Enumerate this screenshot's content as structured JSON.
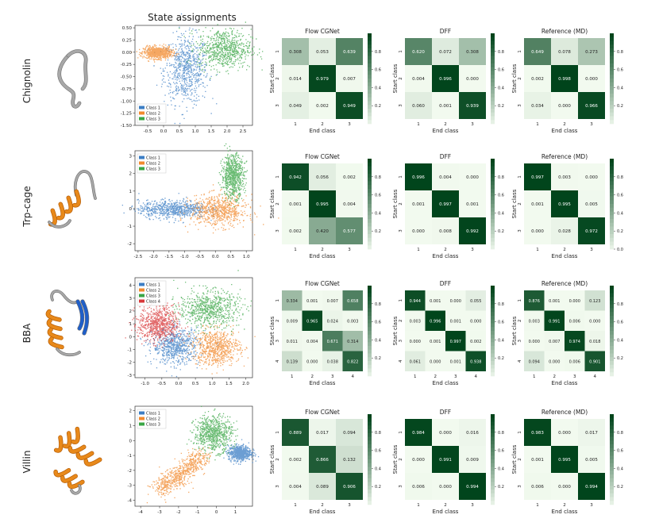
{
  "figure": {
    "column_title": "State assignments",
    "colors": {
      "class1": "#3b7dc4",
      "class2": "#f28a2e",
      "class3": "#3aa645",
      "class4": "#d8383a",
      "protein": "#e8891a",
      "loop": "#9a9a9a",
      "strand": "#1f5fc9"
    }
  },
  "chart_data": [
    {
      "row": "Chignolin",
      "type": "scatter",
      "legend": [
        "Class 1",
        "Class 2",
        "Class 3"
      ],
      "xticks": [
        "-0.5",
        "0.0",
        "0.5",
        "1.0",
        "1.5",
        "2.0",
        "2.5"
      ],
      "yticks": [
        "0.50",
        "0.25",
        "0.00",
        "-0.25",
        "-0.50",
        "-0.75",
        "-1.00",
        "-1.25",
        "-1.50"
      ],
      "xlim": [
        -0.9,
        2.8
      ],
      "ylim": [
        -1.5,
        0.55
      ]
    },
    {
      "row": "Chignolin",
      "type": "heatmap",
      "title": "Flow CGNet",
      "xlabel": "End class",
      "ylabel": "Start class",
      "labels": [
        "1",
        "2",
        "3"
      ],
      "values": [
        [
          0.308,
          0.053,
          0.639
        ],
        [
          0.014,
          0.979,
          0.007
        ],
        [
          0.049,
          0.002,
          0.949
        ]
      ],
      "cbar_ticks": [
        "0.8",
        "0.6",
        "0.4",
        "0.2"
      ]
    },
    {
      "row": "Chignolin",
      "type": "heatmap",
      "title": "DFF",
      "xlabel": "End class",
      "ylabel": "Start class",
      "labels": [
        "1",
        "2",
        "3"
      ],
      "values": [
        [
          0.62,
          0.072,
          0.308
        ],
        [
          0.004,
          0.996,
          0.0
        ],
        [
          0.06,
          0.001,
          0.939
        ]
      ],
      "cbar_ticks": [
        "0.8",
        "0.6",
        "0.4",
        "0.2"
      ]
    },
    {
      "row": "Chignolin",
      "type": "heatmap",
      "title": "Reference (MD)",
      "xlabel": "End class",
      "ylabel": "Start class",
      "labels": [
        "1",
        "2",
        "3"
      ],
      "values": [
        [
          0.649,
          0.078,
          0.273
        ],
        [
          0.002,
          0.998,
          0.0
        ],
        [
          0.034,
          0.0,
          0.966
        ]
      ],
      "cbar_ticks": [
        "0.8",
        "0.6",
        "0.4",
        "0.2"
      ]
    },
    {
      "row": "Trp-cage",
      "type": "scatter",
      "legend": [
        "Class 1",
        "Class 2",
        "Class 3"
      ],
      "xticks": [
        "-2.5",
        "-2.0",
        "-1.5",
        "-1.0",
        "-0.5",
        "0.0",
        "0.5",
        "1.0"
      ],
      "yticks": [
        "3",
        "2",
        "1",
        "0",
        "-1",
        "-2"
      ],
      "xlim": [
        -2.6,
        1.2
      ],
      "ylim": [
        -2.4,
        3.3
      ]
    },
    {
      "row": "Trp-cage",
      "type": "heatmap",
      "title": "Flow CGNet",
      "xlabel": "End class",
      "ylabel": "Start class",
      "labels": [
        "1",
        "2",
        "3"
      ],
      "values": [
        [
          0.942,
          0.056,
          0.002
        ],
        [
          0.001,
          0.995,
          0.004
        ],
        [
          0.002,
          0.42,
          0.577
        ]
      ],
      "cbar_ticks": [
        "0.8",
        "0.6",
        "0.4",
        "0.2"
      ]
    },
    {
      "row": "Trp-cage",
      "type": "heatmap",
      "title": "DFF",
      "xlabel": "End class",
      "ylabel": "Start class",
      "labels": [
        "1",
        "2",
        "3"
      ],
      "values": [
        [
          0.996,
          0.004,
          0.0
        ],
        [
          0.001,
          0.997,
          0.001
        ],
        [
          0.0,
          0.008,
          0.992
        ]
      ],
      "cbar_ticks": [
        "0.8",
        "0.6",
        "0.4",
        "0.2"
      ]
    },
    {
      "row": "Trp-cage",
      "type": "heatmap",
      "title": "Reference (MD)",
      "xlabel": "End class",
      "ylabel": "Start class",
      "labels": [
        "1",
        "2",
        "3"
      ],
      "values": [
        [
          0.997,
          0.003,
          0.0
        ],
        [
          0.001,
          0.995,
          0.005
        ],
        [
          0.0,
          0.028,
          0.972
        ]
      ],
      "cbar_ticks": [
        "0.8",
        "0.6",
        "0.4",
        "0.2",
        "0.0"
      ]
    },
    {
      "row": "BBA",
      "type": "scatter",
      "legend": [
        "Class 1",
        "Class 2",
        "Class 3",
        "Class 4"
      ],
      "xticks": [
        "-1.0",
        "-0.5",
        "0.0",
        "0.5",
        "1.0",
        "1.5",
        "2.0"
      ],
      "yticks": [
        "4",
        "3",
        "2",
        "1",
        "0",
        "-1",
        "-2",
        "-3"
      ],
      "xlim": [
        -1.3,
        2.2
      ],
      "ylim": [
        -3.2,
        4.6
      ]
    },
    {
      "row": "BBA",
      "type": "heatmap",
      "title": "Flow CGNet",
      "xlabel": "End class",
      "ylabel": "Start class",
      "labels": [
        "1",
        "2",
        "3",
        "4"
      ],
      "values": [
        [
          0.334,
          0.001,
          0.007,
          0.658
        ],
        [
          0.009,
          0.965,
          0.024,
          0.003
        ],
        [
          0.011,
          0.004,
          0.671,
          0.314
        ],
        [
          0.139,
          0.0,
          0.038,
          0.822
        ]
      ],
      "cbar_ticks": [
        "0.8",
        "0.6",
        "0.4",
        "0.2"
      ]
    },
    {
      "row": "BBA",
      "type": "heatmap",
      "title": "DFF",
      "xlabel": "End class",
      "ylabel": "Start class",
      "labels": [
        "1",
        "2",
        "3",
        "4"
      ],
      "values": [
        [
          0.944,
          0.001,
          0.0,
          0.055
        ],
        [
          0.003,
          0.996,
          0.001,
          0.0
        ],
        [
          0.0,
          0.001,
          0.997,
          0.002
        ],
        [
          0.061,
          0.0,
          0.001,
          0.938
        ]
      ],
      "cbar_ticks": [
        "0.8",
        "0.6",
        "0.4",
        "0.2"
      ]
    },
    {
      "row": "BBA",
      "type": "heatmap",
      "title": "Reference (MD)",
      "xlabel": "End class",
      "ylabel": "Start class",
      "labels": [
        "1",
        "2",
        "3",
        "4"
      ],
      "values": [
        [
          0.876,
          0.001,
          0.0,
          0.123
        ],
        [
          0.003,
          0.991,
          0.006,
          0.0
        ],
        [
          0.0,
          0.007,
          0.974,
          0.018
        ],
        [
          0.094,
          0.0,
          0.006,
          0.901
        ]
      ],
      "cbar_ticks": [
        "0.8",
        "0.6",
        "0.4",
        "0.2"
      ]
    },
    {
      "row": "Villin",
      "type": "scatter",
      "legend": [
        "Class 1",
        "Class 2",
        "Class 3"
      ],
      "xticks": [
        "-4",
        "-3",
        "-2",
        "-1",
        "0",
        "1"
      ],
      "yticks": [
        "2",
        "1",
        "0",
        "-1",
        "-2",
        "-3",
        "-4"
      ],
      "xlim": [
        -4.3,
        1.9
      ],
      "ylim": [
        -4.4,
        2.3
      ]
    },
    {
      "row": "Villin",
      "type": "heatmap",
      "title": "Flow CGNet",
      "xlabel": "End class",
      "ylabel": "Start class",
      "labels": [
        "1",
        "2",
        "3"
      ],
      "values": [
        [
          0.889,
          0.017,
          0.094
        ],
        [
          0.002,
          0.866,
          0.132
        ],
        [
          0.004,
          0.089,
          0.906
        ]
      ],
      "cbar_ticks": [
        "0.8",
        "0.6",
        "0.4",
        "0.2"
      ]
    },
    {
      "row": "Villin",
      "type": "heatmap",
      "title": "DFF",
      "xlabel": "End class",
      "ylabel": "Start class",
      "labels": [
        "1",
        "2",
        "3"
      ],
      "values": [
        [
          0.984,
          0.0,
          0.016
        ],
        [
          0.0,
          0.991,
          0.009
        ],
        [
          0.006,
          0.0,
          0.994
        ]
      ],
      "cbar_ticks": [
        "0.8",
        "0.6",
        "0.4",
        "0.2"
      ]
    },
    {
      "row": "Villin",
      "type": "heatmap",
      "title": "Reference (MD)",
      "xlabel": "End class",
      "ylabel": "Start class",
      "labels": [
        "1",
        "2",
        "3"
      ],
      "values": [
        [
          0.983,
          0.0,
          0.017
        ],
        [
          0.001,
          0.995,
          0.005
        ],
        [
          0.006,
          0.0,
          0.994
        ]
      ],
      "cbar_ticks": [
        "0.8",
        "0.6",
        "0.4",
        "0.2"
      ]
    }
  ]
}
